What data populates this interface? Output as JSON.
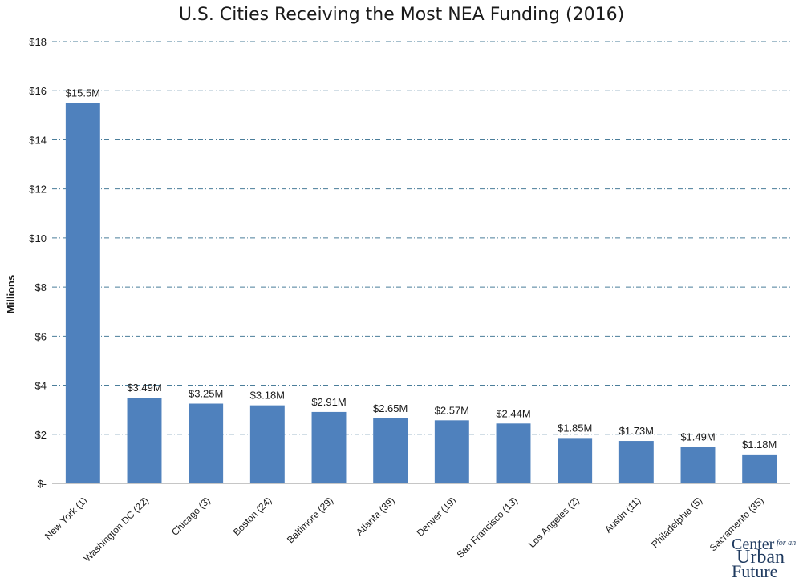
{
  "chart_data": {
    "type": "bar",
    "title": "U.S. Cities Receiving the Most NEA Funding (2016)",
    "ylabel": "Millions",
    "xlabel": "",
    "ylim": [
      0,
      18
    ],
    "yticks": [
      0,
      2,
      4,
      6,
      8,
      10,
      12,
      14,
      16,
      18
    ],
    "ytick_labels": [
      "$-",
      "$2",
      "$4",
      "$6",
      "$8",
      "$10",
      "$12",
      "$14",
      "$16",
      "$18"
    ],
    "grid": true,
    "bar_color": "#4f81bd",
    "categories": [
      "New York (1)",
      "Washington DC (22)",
      "Chicago (3)",
      "Boston (24)",
      "Baltimore (29)",
      "Atlanta (39)",
      "Denver (19)",
      "San Francisco (13)",
      "Los Angeles (2)",
      "Austin (11)",
      "Philadelphia (5)",
      "Sacramento (35)"
    ],
    "values": [
      15.5,
      3.49,
      3.25,
      3.18,
      2.91,
      2.65,
      2.57,
      2.44,
      1.85,
      1.73,
      1.49,
      1.18
    ],
    "data_labels": [
      "$15.5M",
      "$3.49M",
      "$3.25M",
      "$3.18M",
      "$2.91M",
      "$2.65M",
      "$2.57M",
      "$2.44M",
      "$1.85M",
      "$1.73M",
      "$1.49M",
      "$1.18M"
    ]
  },
  "logo": {
    "line1": "Center",
    "line1_small": "for an",
    "line2": "Urban",
    "line3": "Future"
  }
}
